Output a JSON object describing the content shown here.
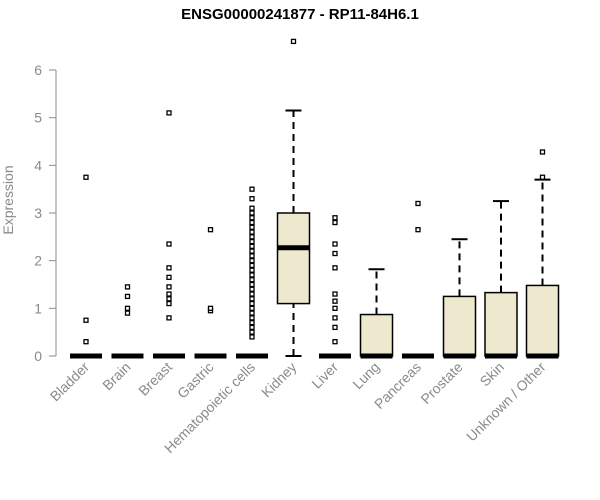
{
  "chart_data": {
    "type": "box",
    "title": "ENSG00000241877 - RP11-84H6.1",
    "xlabel": "",
    "ylabel": "Expression",
    "ylim": [
      0,
      6.3
    ],
    "yticks": [
      0,
      1,
      2,
      3,
      4,
      5,
      6
    ],
    "box_fill": "#EEE8CF",
    "categories": [
      "Bladder",
      "Brain",
      "Breast",
      "Gastric",
      "Hematopoietic cells",
      "Kidney",
      "Liver",
      "Lung",
      "Pancreas",
      "Prostate",
      "Skin",
      "Unknown / Other"
    ],
    "boxes": [
      {
        "q1": 0,
        "median": 0,
        "q3": 0,
        "whisker_low": 0,
        "whisker_high": 0,
        "outliers": [
          0.3,
          0.75,
          3.75
        ]
      },
      {
        "q1": 0,
        "median": 0,
        "q3": 0,
        "whisker_low": 0,
        "whisker_high": 0,
        "outliers": [
          0.9,
          1.0,
          1.25,
          1.45
        ]
      },
      {
        "q1": 0,
        "median": 0,
        "q3": 0,
        "whisker_low": 0,
        "whisker_high": 0,
        "outliers": [
          0.8,
          1.1,
          1.2,
          1.3,
          1.45,
          1.65,
          1.85,
          2.35,
          5.1
        ]
      },
      {
        "q1": 0,
        "median": 0,
        "q3": 0,
        "whisker_low": 0,
        "whisker_high": 0,
        "outliers": [
          0.95,
          1.0,
          2.65
        ]
      },
      {
        "q1": 0,
        "median": 0,
        "q3": 0,
        "whisker_low": 0,
        "whisker_high": 0,
        "outliers": [
          0.4,
          0.5,
          0.6,
          0.7,
          0.8,
          0.9,
          1.0,
          1.1,
          1.2,
          1.3,
          1.4,
          1.5,
          1.6,
          1.7,
          1.8,
          1.9,
          2.0,
          2.1,
          2.2,
          2.3,
          2.4,
          2.5,
          2.6,
          2.7,
          2.8,
          2.9,
          3.0,
          3.1,
          3.3,
          3.5
        ]
      },
      {
        "q1": 1.1,
        "median": 2.27,
        "q3": 3.0,
        "whisker_low": 0,
        "whisker_high": 5.15,
        "outliers": [
          6.6
        ]
      },
      {
        "q1": 0,
        "median": 0,
        "q3": 0,
        "whisker_low": 0,
        "whisker_high": 0,
        "outliers": [
          0.3,
          0.6,
          0.8,
          1.0,
          1.15,
          1.3,
          1.85,
          2.15,
          2.35,
          2.8,
          2.9
        ]
      },
      {
        "q1": 0,
        "median": 0,
        "q3": 0.87,
        "whisker_low": 0,
        "whisker_high": 1.82,
        "outliers": []
      },
      {
        "q1": 0,
        "median": 0,
        "q3": 0,
        "whisker_low": 0,
        "whisker_high": 0,
        "outliers": [
          2.65,
          3.2
        ]
      },
      {
        "q1": 0,
        "median": 0,
        "q3": 1.25,
        "whisker_low": 0,
        "whisker_high": 2.45,
        "outliers": []
      },
      {
        "q1": 0,
        "median": 0,
        "q3": 1.33,
        "whisker_low": 0,
        "whisker_high": 3.25,
        "outliers": []
      },
      {
        "q1": 0,
        "median": 0,
        "q3": 1.48,
        "whisker_low": 0,
        "whisker_high": 3.7,
        "outliers": [
          3.75,
          4.28
        ]
      }
    ]
  }
}
